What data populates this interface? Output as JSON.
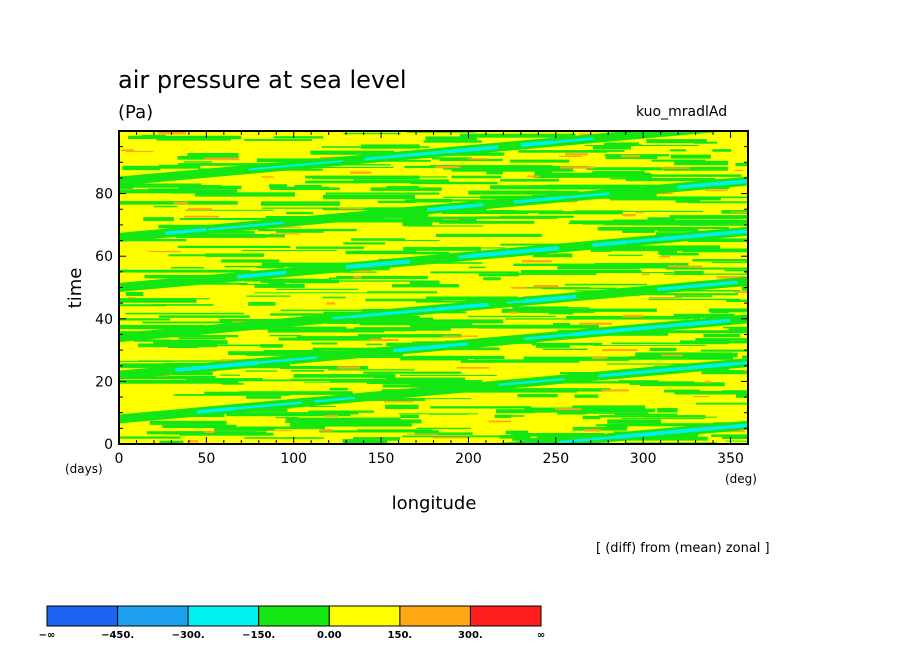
{
  "header": {
    "title": "air pressure at sea level",
    "units": "(Pa)",
    "run_name": "kuo_mradlAd",
    "note": "[ (diff) from (mean) zonal ]"
  },
  "chart_data": {
    "type": "heatmap",
    "title": "air pressure at sea level",
    "subtitle": "(Pa)",
    "xlabel": "longitude",
    "xunit": "(deg)",
    "ylabel": "time",
    "yunit": "(days)",
    "xlim": [
      0,
      360
    ],
    "ylim": [
      0,
      100
    ],
    "x_ticks": [
      0,
      50,
      100,
      150,
      200,
      250,
      300,
      350
    ],
    "y_ticks": [
      0,
      20,
      40,
      60,
      80
    ],
    "color_levels": [
      "−∞",
      "−450.",
      "−300.",
      "−150.",
      "0.00",
      "150.",
      "300.",
      "∞"
    ],
    "color_bins": [
      {
        "range": [
          "−∞",
          "−450."
        ],
        "color": "#1c64f0"
      },
      {
        "range": [
          "−450.",
          "−300."
        ],
        "color": "#1ea0f0"
      },
      {
        "range": [
          "−300.",
          "−150."
        ],
        "color": "#00f0f0"
      },
      {
        "range": [
          "−150.",
          "0.00"
        ],
        "color": "#14e614"
      },
      {
        "range": [
          "0.00",
          "150."
        ],
        "color": "#ffff00"
      },
      {
        "range": [
          "150.",
          "300."
        ],
        "color": "#ffa814"
      },
      {
        "range": [
          "300.",
          "∞"
        ],
        "color": "#ff1e1e"
      }
    ],
    "dominant_bins": [
      "0.00–150.",
      "−150.–0.00"
    ],
    "features": "eastward-propagating negative anomaly streaks (cyan, −300 to −150) tilting upward to the right across the time–longitude plot"
  }
}
